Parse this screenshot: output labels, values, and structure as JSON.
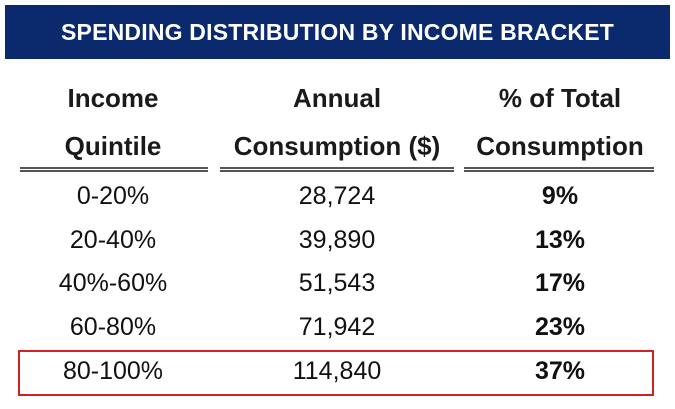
{
  "chart_data": {
    "type": "table",
    "title": "SPENDING DISTRIBUTION BY INCOME BRACKET",
    "columns": [
      {
        "line1": "Income",
        "line2": "Quintile"
      },
      {
        "line1": "Annual",
        "line2": "Consumption ($)"
      },
      {
        "line1": "% of Total",
        "line2": "Consumption"
      }
    ],
    "rows": [
      {
        "quintile": "0-20%",
        "consumption": "28,724",
        "share": "9%"
      },
      {
        "quintile": "20-40%",
        "consumption": "39,890",
        "share": "13%"
      },
      {
        "quintile": "40%-60%",
        "consumption": "51,543",
        "share": "17%"
      },
      {
        "quintile": "60-80%",
        "consumption": "71,942",
        "share": "23%"
      },
      {
        "quintile": "80-100%",
        "consumption": "114,840",
        "share": "37%"
      }
    ],
    "highlighted_row": 4,
    "colors": {
      "title_background": "#0b2a6e",
      "title_text": "#ffffff",
      "highlight_border": "#d42020"
    }
  }
}
